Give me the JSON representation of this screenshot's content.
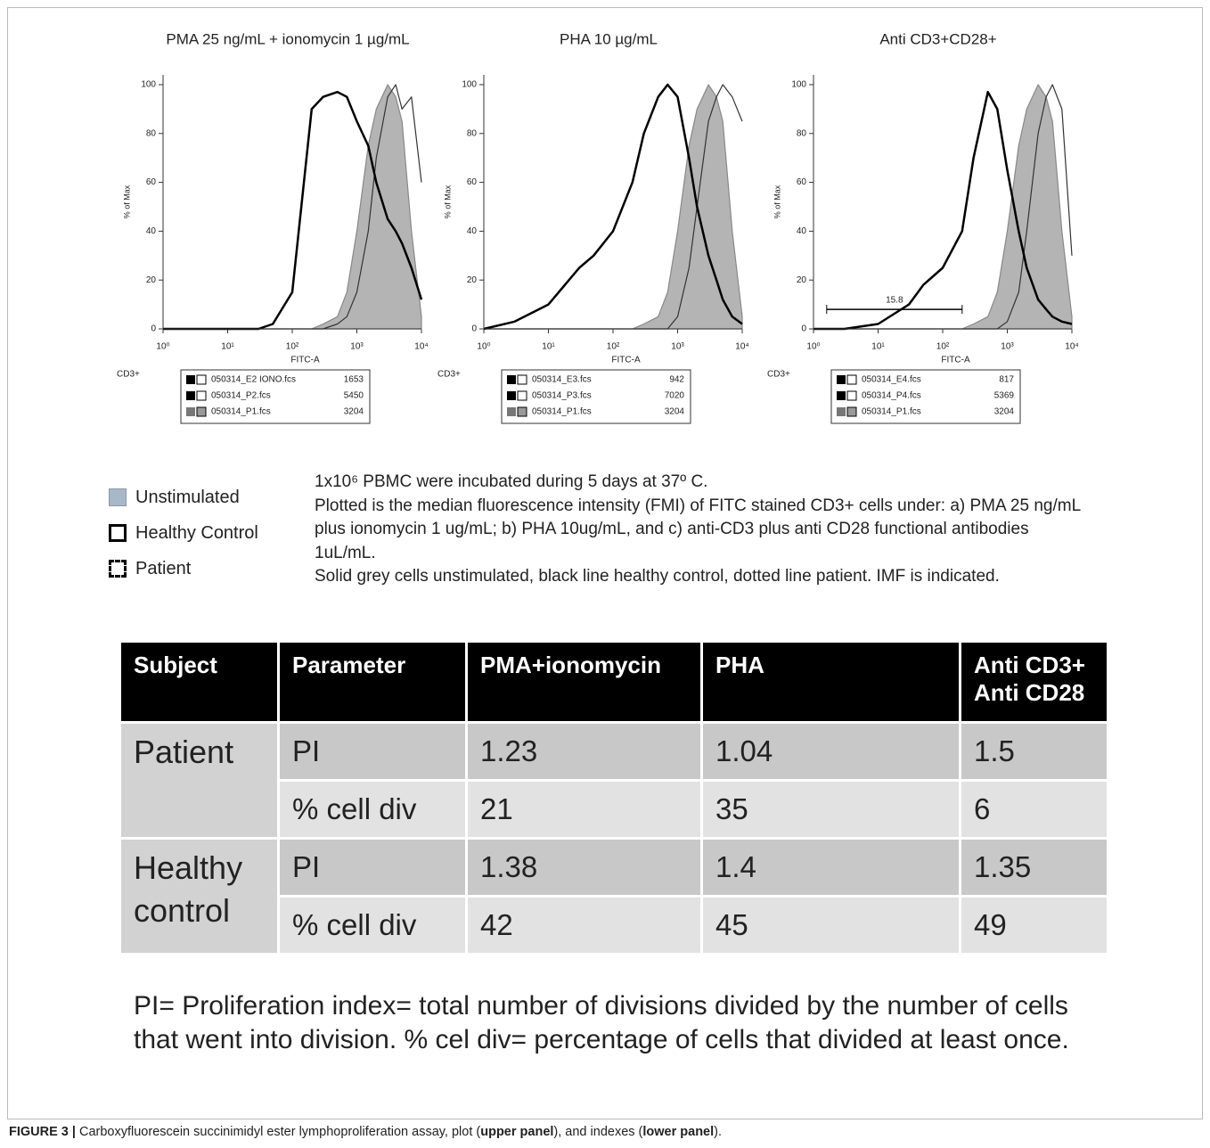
{
  "chart_data": [
    {
      "type": "line",
      "title": "PMA 25  ng/mL + ionomycin 1 µg/mL",
      "xlabel": "FITC-A",
      "ylabel": "% of Max",
      "side_label": "CD3+",
      "xscale": "log",
      "xlim": [
        1,
        10000
      ],
      "ylim": [
        0,
        104
      ],
      "xticks": [
        {
          "value": 1,
          "label": "10⁰"
        },
        {
          "value": 10,
          "label": "10¹"
        },
        {
          "value": 100,
          "label": "10²"
        },
        {
          "value": 1000,
          "label": "10³"
        },
        {
          "value": 10000,
          "label": "10⁴"
        }
      ],
      "yticks": [
        0,
        20,
        40,
        60,
        80,
        100
      ],
      "x": [
        1,
        3,
        10,
        30,
        50,
        100,
        200,
        300,
        500,
        700,
        1000,
        1500,
        2000,
        3000,
        4000,
        5000,
        7000,
        10000
      ],
      "series": [
        {
          "name": "050314_E2 IONO.fcs",
          "mfi": 1653,
          "color": "#000000",
          "style": "thick",
          "values": [
            0,
            0,
            0,
            0,
            2,
            15,
            90,
            95,
            97,
            95,
            85,
            75,
            60,
            45,
            40,
            35,
            25,
            12
          ]
        },
        {
          "name": "050314_P2.fcs",
          "mfi": 5450,
          "color": "#333333",
          "style": "thin",
          "values": [
            0,
            0,
            0,
            0,
            0,
            0,
            0,
            0,
            2,
            5,
            15,
            40,
            70,
            95,
            100,
            90,
            95,
            60
          ]
        },
        {
          "name": "050314_P1.fcs",
          "mfi": 3204,
          "color": "#b4b4b4",
          "style": "filled",
          "values": [
            0,
            0,
            0,
            0,
            0,
            0,
            0,
            2,
            5,
            15,
            40,
            75,
            90,
            100,
            95,
            85,
            40,
            5
          ]
        }
      ]
    },
    {
      "type": "line",
      "title": "PHA 10 µg/mL",
      "xlabel": "FITC-A",
      "ylabel": "% of Max",
      "side_label": "CD3+",
      "xscale": "log",
      "xlim": [
        1,
        10000
      ],
      "ylim": [
        0,
        104
      ],
      "xticks": [
        {
          "value": 1,
          "label": "10⁰"
        },
        {
          "value": 10,
          "label": "10¹"
        },
        {
          "value": 100,
          "label": "10²"
        },
        {
          "value": 1000,
          "label": "10³"
        },
        {
          "value": 10000,
          "label": "10⁴"
        }
      ],
      "yticks": [
        0,
        20,
        40,
        60,
        80,
        100
      ],
      "x": [
        1,
        3,
        10,
        30,
        50,
        100,
        200,
        300,
        500,
        700,
        1000,
        1500,
        2000,
        3000,
        4000,
        5000,
        7000,
        10000
      ],
      "series": [
        {
          "name": "050314_E3.fcs",
          "mfi": 942,
          "color": "#000000",
          "style": "thick",
          "values": [
            0,
            3,
            10,
            25,
            30,
            40,
            60,
            80,
            95,
            100,
            95,
            70,
            50,
            30,
            20,
            12,
            5,
            2
          ]
        },
        {
          "name": "050314_P3.fcs",
          "mfi": 7020,
          "color": "#333333",
          "style": "thin",
          "values": [
            0,
            0,
            0,
            0,
            0,
            0,
            0,
            0,
            0,
            0,
            5,
            25,
            50,
            85,
            95,
            100,
            95,
            85
          ]
        },
        {
          "name": "050314_P1.fcs",
          "mfi": 3204,
          "color": "#b4b4b4",
          "style": "filled",
          "values": [
            0,
            0,
            0,
            0,
            0,
            0,
            0,
            2,
            5,
            15,
            40,
            75,
            90,
            100,
            95,
            85,
            40,
            5
          ]
        }
      ]
    },
    {
      "type": "line",
      "title": "Anti CD3+CD28+",
      "xlabel": "FITC-A",
      "ylabel": "% of Max",
      "side_label": "CD3+",
      "xscale": "log",
      "xlim": [
        1,
        10000
      ],
      "ylim": [
        0,
        104
      ],
      "xticks": [
        {
          "value": 1,
          "label": "10⁰"
        },
        {
          "value": 10,
          "label": "10¹"
        },
        {
          "value": 100,
          "label": "10²"
        },
        {
          "value": 1000,
          "label": "10³"
        },
        {
          "value": 10000,
          "label": "10⁴"
        }
      ],
      "yticks": [
        0,
        20,
        40,
        60,
        80,
        100
      ],
      "x": [
        1,
        3,
        10,
        30,
        50,
        100,
        200,
        300,
        500,
        700,
        1000,
        1500,
        2000,
        3000,
        4000,
        5000,
        7000,
        10000
      ],
      "series": [
        {
          "name": "050314_E4.fcs",
          "mfi": 817,
          "color": "#000000",
          "style": "thick",
          "values": [
            0,
            0,
            2,
            10,
            18,
            25,
            40,
            70,
            97,
            90,
            65,
            40,
            25,
            12,
            8,
            5,
            3,
            2
          ]
        },
        {
          "name": "050314_P4.fcs",
          "mfi": 5369,
          "color": "#333333",
          "style": "thin",
          "values": [
            0,
            0,
            0,
            0,
            0,
            0,
            0,
            0,
            0,
            0,
            3,
            15,
            40,
            80,
            95,
            100,
            90,
            30
          ]
        },
        {
          "name": "050314_P1.fcs",
          "mfi": 3204,
          "color": "#b4b4b4",
          "style": "filled",
          "values": [
            0,
            0,
            0,
            0,
            0,
            0,
            0,
            2,
            5,
            15,
            40,
            75,
            90,
            100,
            95,
            85,
            40,
            5
          ]
        }
      ],
      "gate": {
        "value": 15.8,
        "x": [
          1.6,
          200
        ],
        "y": 8
      }
    }
  ],
  "key": [
    {
      "label": "Unstimulated"
    },
    {
      "label": "Healthy Control"
    },
    {
      "label": "Patient"
    }
  ],
  "description": [
    "1x10⁶ PBMC were incubated during 5 days at 37º C.",
    "Plotted is the median fluorescence intensity (FMI) of FITC stained CD3+ cells under: a) PMA 25 ng/mL plus ionomycin 1 ug/mL; b) PHA 10ug/mL, and c) anti-CD3 plus anti CD28 functional antibodies 1uL/mL.",
    "Solid grey cells unstimulated, black line healthy control, dotted line patient. IMF is indicated."
  ],
  "table": {
    "header": [
      "Subject",
      "Parameter",
      "PMA+ionomycin",
      "PHA",
      "Anti CD3+ Anti CD28"
    ],
    "groups": [
      {
        "subject": "Patient",
        "rows": [
          {
            "parameter": "PI",
            "values": [
              1.23,
              1.04,
              1.5
            ]
          },
          {
            "parameter": "% cell div",
            "values": [
              21,
              35,
              6
            ]
          }
        ]
      },
      {
        "subject": "Healthy control",
        "rows": [
          {
            "parameter": "PI",
            "values": [
              1.38,
              1.4,
              1.35
            ]
          },
          {
            "parameter": "% cell div",
            "values": [
              42,
              45,
              49
            ]
          }
        ]
      }
    ]
  },
  "footnote": "PI= Proliferation index= total number of divisions divided by the number of cells that went into division. % cel div= percentage of cells that divided at least once.",
  "caption": {
    "label": "FIGURE 3 |",
    "text_1": " Carboxyfluorescein succinimidyl ester lymphoproliferation assay, plot (",
    "bold_1": "upper panel",
    "text_2": "), and indexes (",
    "bold_2": "lower panel",
    "text_3": ")."
  }
}
